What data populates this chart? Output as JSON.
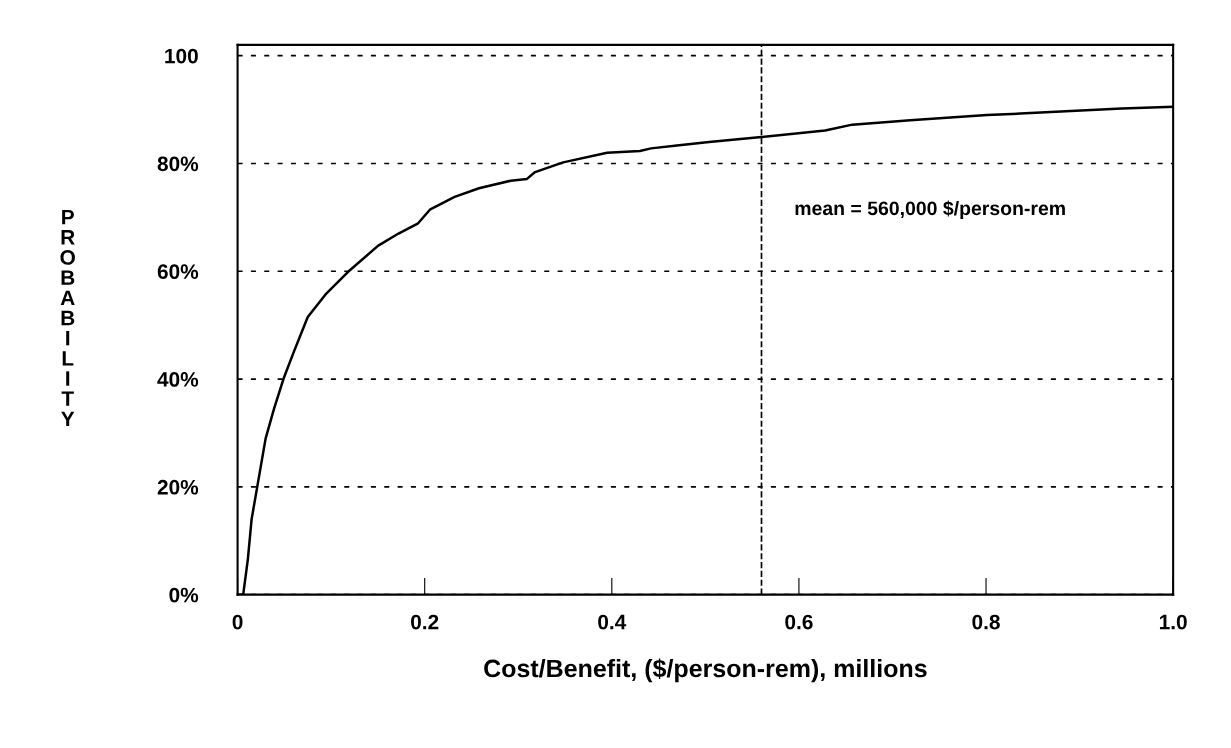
{
  "chart_data": {
    "type": "line",
    "xlabel": "Cost/Benefit, ($/person-rem), millions",
    "ylabel": "PROBABILITY",
    "x": [
      0.0,
      0.006,
      0.011,
      0.015,
      0.021,
      0.03,
      0.039,
      0.049,
      0.06,
      0.075,
      0.094,
      0.12,
      0.15,
      0.172,
      0.193,
      0.206,
      0.232,
      0.258,
      0.292,
      0.309,
      0.318,
      0.348,
      0.395,
      0.43,
      0.442,
      0.472,
      0.504,
      0.56,
      0.628,
      0.657,
      0.719,
      0.801,
      0.842,
      0.945,
      1.0
    ],
    "series": [
      {
        "color": "#000000",
        "values": [
          0,
          0,
          6.6,
          14,
          20,
          29,
          34.5,
          40,
          45,
          51.5,
          55.7,
          60.2,
          64.7,
          67,
          68.9,
          71.5,
          73.8,
          75.4,
          76.8,
          77.1,
          78.4,
          80.2,
          82,
          82.3,
          82.8,
          83.4,
          84.0,
          84.9,
          86.1,
          87.2,
          88.0,
          89.0,
          89.3,
          90.2,
          90.5
        ]
      }
    ],
    "xlim": [
      0,
      1
    ],
    "xticks": [
      {
        "value": 0,
        "label": "0"
      },
      0.2,
      0.4,
      0.6,
      0.8,
      {
        "value": 1.0,
        "label": "1.0"
      }
    ],
    "ylim": [
      0,
      102
    ],
    "yticks": [
      {
        "value": 0,
        "label": "0%"
      },
      {
        "value": 20,
        "label": "20%"
      },
      {
        "value": 40,
        "label": "40%"
      },
      {
        "value": 60,
        "label": "60%"
      },
      {
        "value": 80,
        "label": "80%"
      },
      100
    ],
    "grid": "y",
    "marker": "none",
    "line_style": "solid",
    "ref_lines": [
      {
        "axis": "x",
        "value": 0.56,
        "label": "mean = 560,000 $/person-rem",
        "color": "#000000",
        "line_style": "dashed"
      }
    ]
  }
}
